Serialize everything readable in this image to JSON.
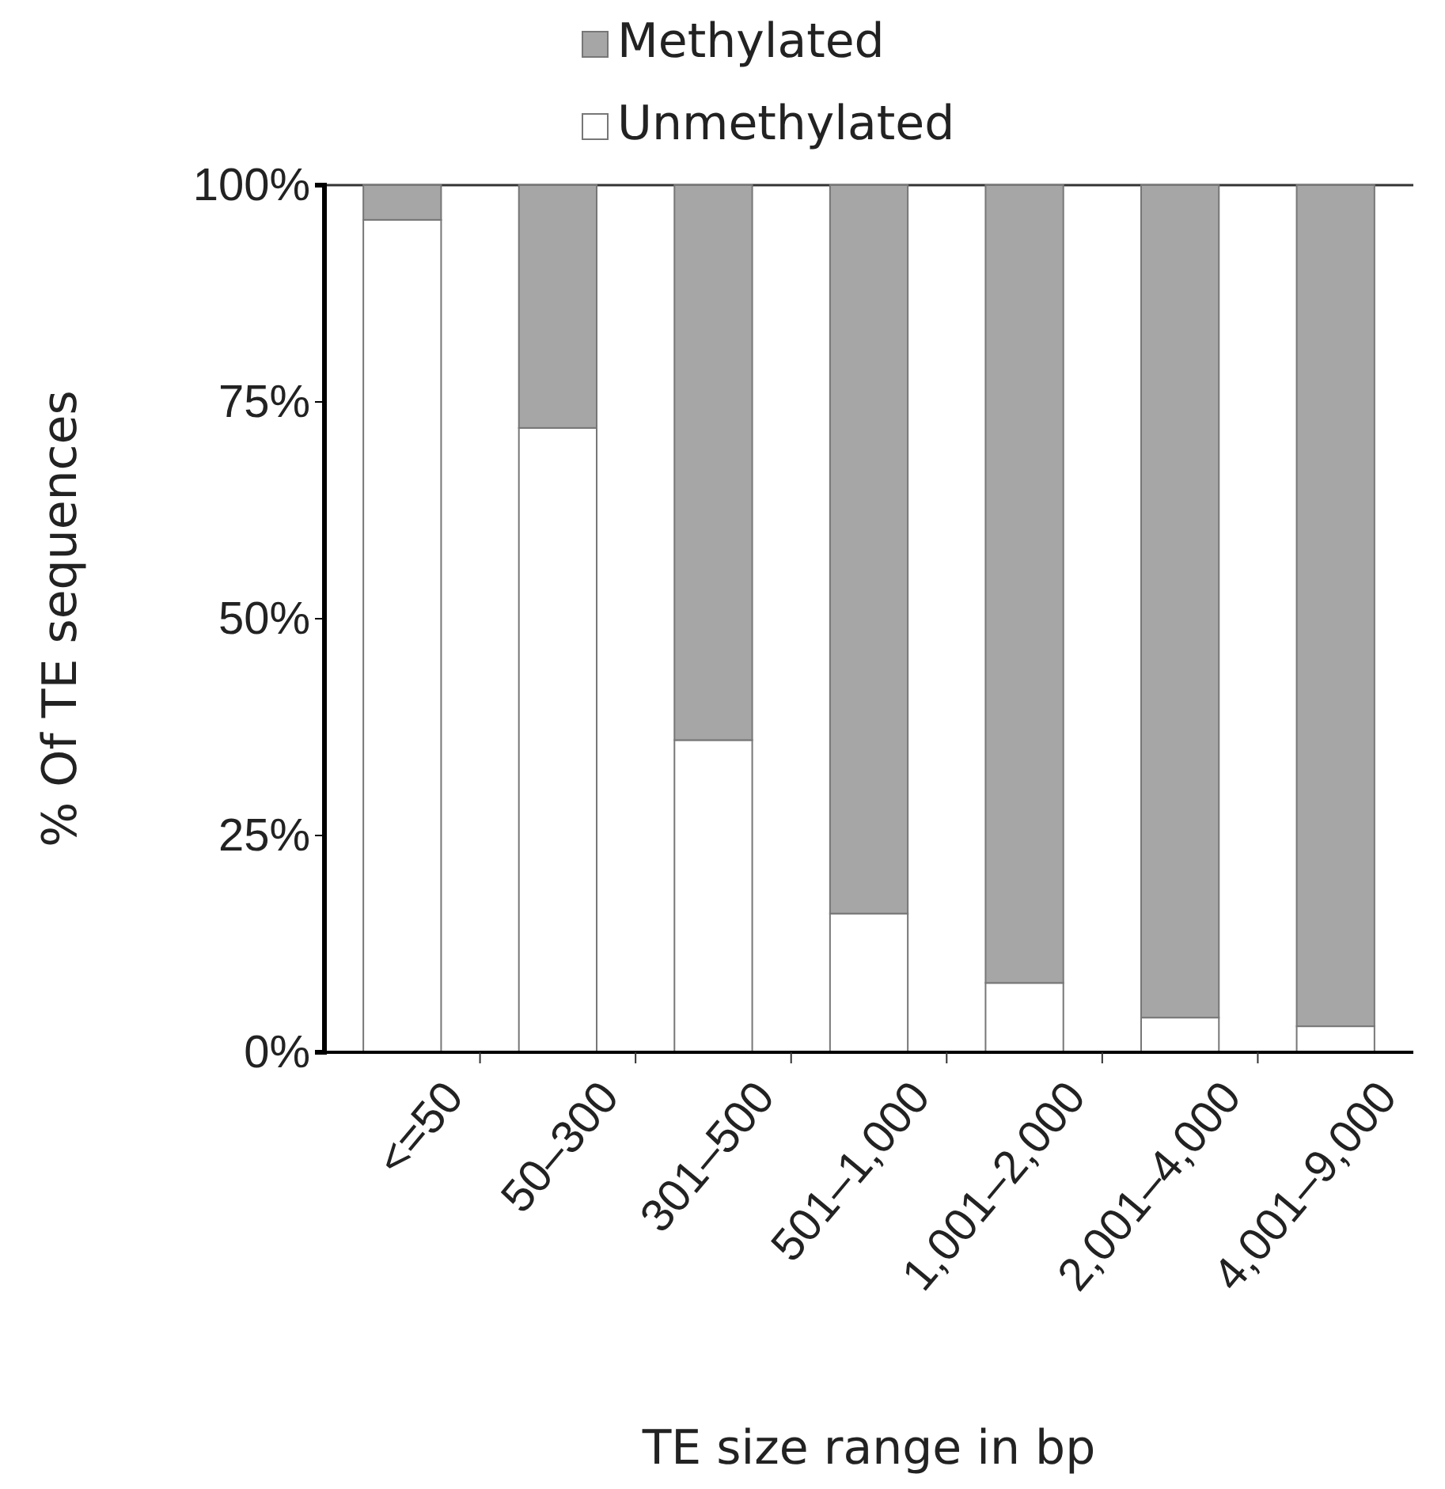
{
  "chart_data": {
    "type": "bar",
    "stacked": true,
    "xlabel": "TE size range in bp",
    "ylabel": "% Of TE sequences",
    "categories": [
      "<=50",
      "50–300",
      "301–500",
      "501–1,000",
      "1,001–2,000",
      "2,001–4,000",
      "4,001–9,000"
    ],
    "series": [
      {
        "name": "Unmethylated",
        "color": "#ffffff",
        "values": [
          96,
          72,
          36,
          16,
          8,
          4,
          3
        ]
      },
      {
        "name": "Methylated",
        "color": "#a6a6a6",
        "values": [
          4,
          28,
          64,
          84,
          92,
          96,
          97
        ]
      }
    ],
    "ylim": [
      0,
      100
    ],
    "yticks": [
      {
        "value": 0,
        "label": "0%"
      },
      {
        "value": 25,
        "label": "25%"
      },
      {
        "value": 50,
        "label": "50%"
      },
      {
        "value": 75,
        "label": "75%"
      },
      {
        "value": 100,
        "label": "100%"
      }
    ],
    "grid": false,
    "legend": "top"
  }
}
